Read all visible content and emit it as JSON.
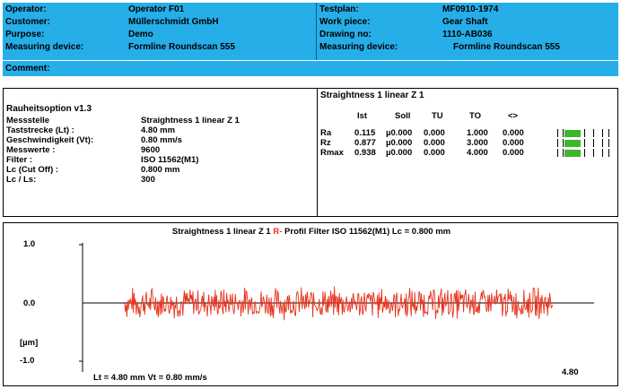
{
  "header": {
    "left": [
      {
        "key": "Operator:",
        "value": "Operator F01"
      },
      {
        "key": "Customer:",
        "value": "Müllerschmidt GmbH"
      },
      {
        "key": "Purpose:",
        "value": "Demo"
      },
      {
        "key": "Measuring device:",
        "value": "Formline Roundscan 555"
      }
    ],
    "right": [
      {
        "key": "Testplan:",
        "value": "MF0910-1974"
      },
      {
        "key": "Work piece:",
        "value": "Gear Shaft"
      },
      {
        "key": "Drawing no:",
        "value": "1110-AB036"
      },
      {
        "key": "Measuring device:",
        "value": "Formline Roundscan 555"
      }
    ],
    "comment_label": "Comment:",
    "bg_color": "#26aee8"
  },
  "info": {
    "option": "Rauheitsoption v1.3",
    "rows": [
      {
        "key": "Messstelle",
        "value": "Straightness 1 linear Z 1"
      },
      {
        "key": "Taststrecke (Lt) :",
        "value": "4.80 mm"
      },
      {
        "key": "Geschwindigkeit (Vt):",
        "value": "0.80 mm/s"
      },
      {
        "key": "Messwerte :",
        "value": "9600"
      },
      {
        "key": "Filter :",
        "value": "ISO 11562(M1)"
      },
      {
        "key": "Lc   (Cut Off) :",
        "value": "0.800 mm"
      },
      {
        "key": "Lc / Ls:",
        "value": "300"
      }
    ]
  },
  "results": {
    "title": "Straightness 1 linear Z 1",
    "columns": [
      "Ist",
      "Soll",
      "TU",
      "TO",
      "<>"
    ],
    "rows": [
      {
        "name": "Ra",
        "ist": "0.115",
        "soll": "µ0.000",
        "tu": "0.000",
        "to": "1.000",
        "diff": "0.000",
        "fill": 0.35
      },
      {
        "name": "Rz",
        "ist": "0.877",
        "soll": "µ0.000",
        "tu": "0.000",
        "to": "3.000",
        "diff": "0.000",
        "fill": 0.35
      },
      {
        "name": "Rmax",
        "ist": "0.938",
        "soll": "µ0.000",
        "tu": "0.000",
        "to": "4.000",
        "diff": "0.000",
        "fill": 0.35
      }
    ],
    "bar_color": "#3fb52e"
  },
  "chart_data": {
    "type": "line",
    "title_main": "Straightness 1 linear Z 1",
    "title_profile": "R-",
    "title_rest": "Profil  Filter  ISO 11562(M1)  Lc = 0.800  mm",
    "y_ticks": [
      "1.0",
      "0.0",
      "-1.0"
    ],
    "ylabel": "[µm]",
    "ylim": [
      -1.0,
      1.0
    ],
    "xlim": [
      0.0,
      4.8
    ],
    "x_end_label": "4.80",
    "footer": "Lt = 4.80  mm    Vt = 0.80  mm/s",
    "series": [
      {
        "color": "#e8321c",
        "amplitude": 0.3
      }
    ]
  }
}
